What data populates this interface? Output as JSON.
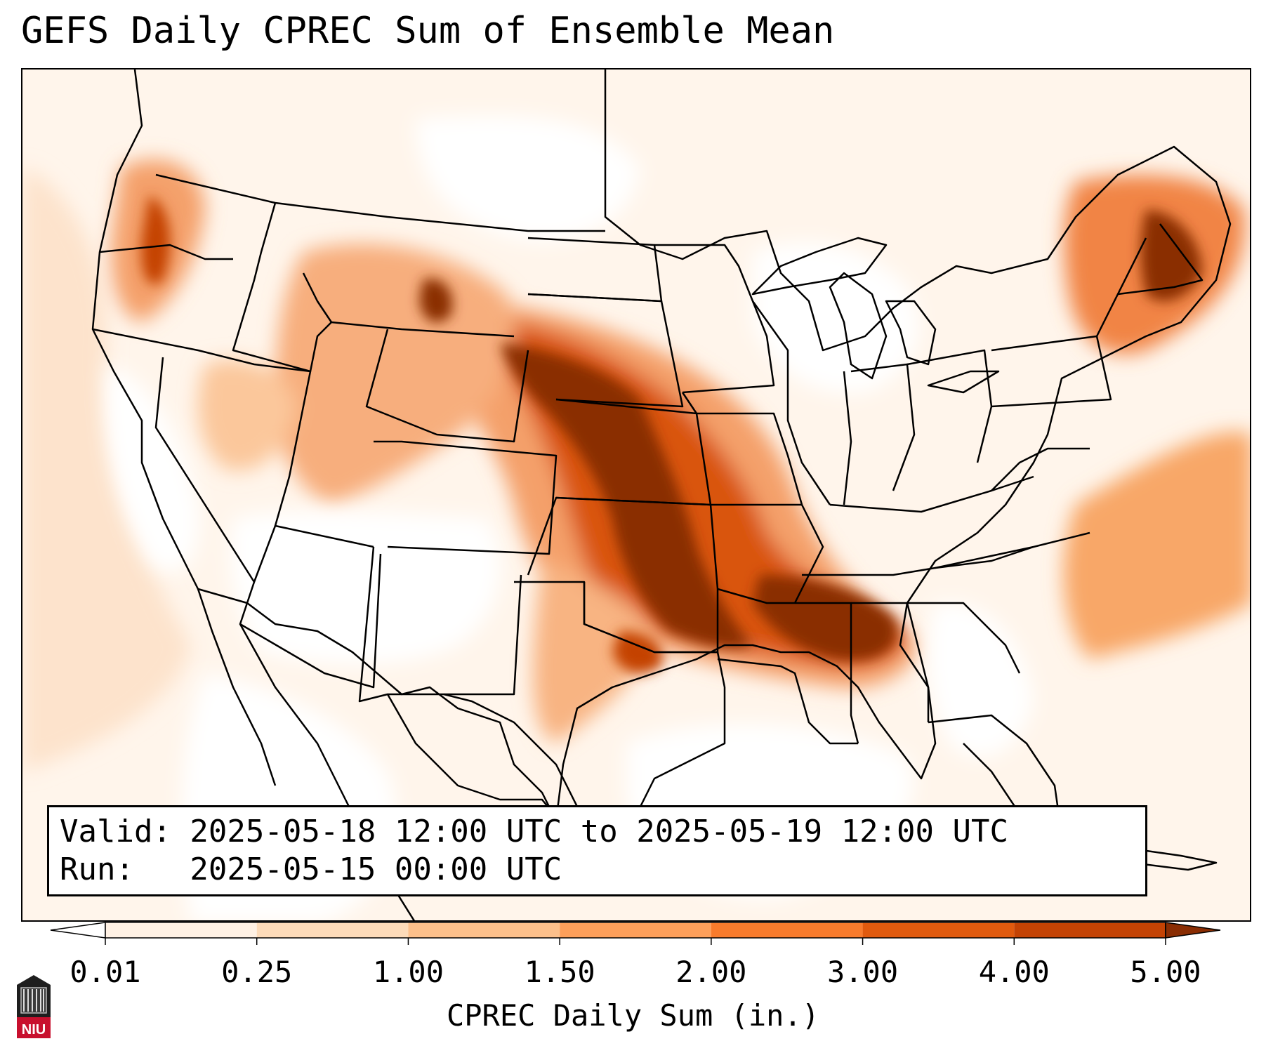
{
  "title": "GEFS Daily CPREC Sum of Ensemble Mean",
  "info": {
    "valid": "Valid: 2025-05-18 12:00 UTC to 2025-05-19 12:00 UTC",
    "run": "Run:   2025-05-15 00:00 UTC"
  },
  "colorbar": {
    "label": "CPREC Daily Sum (in.)",
    "ticks": [
      "0.01",
      "0.25",
      "1.00",
      "1.50",
      "2.00",
      "3.00",
      "4.00",
      "5.00"
    ],
    "colors": [
      "#fff1e4",
      "#fddbb9",
      "#fdc08b",
      "#fd9f5a",
      "#f87b2c",
      "#e05a0e",
      "#c44304"
    ],
    "under_color": "#ffffff",
    "over_color": "#8a2d03"
  },
  "logo_text": "NIU"
}
